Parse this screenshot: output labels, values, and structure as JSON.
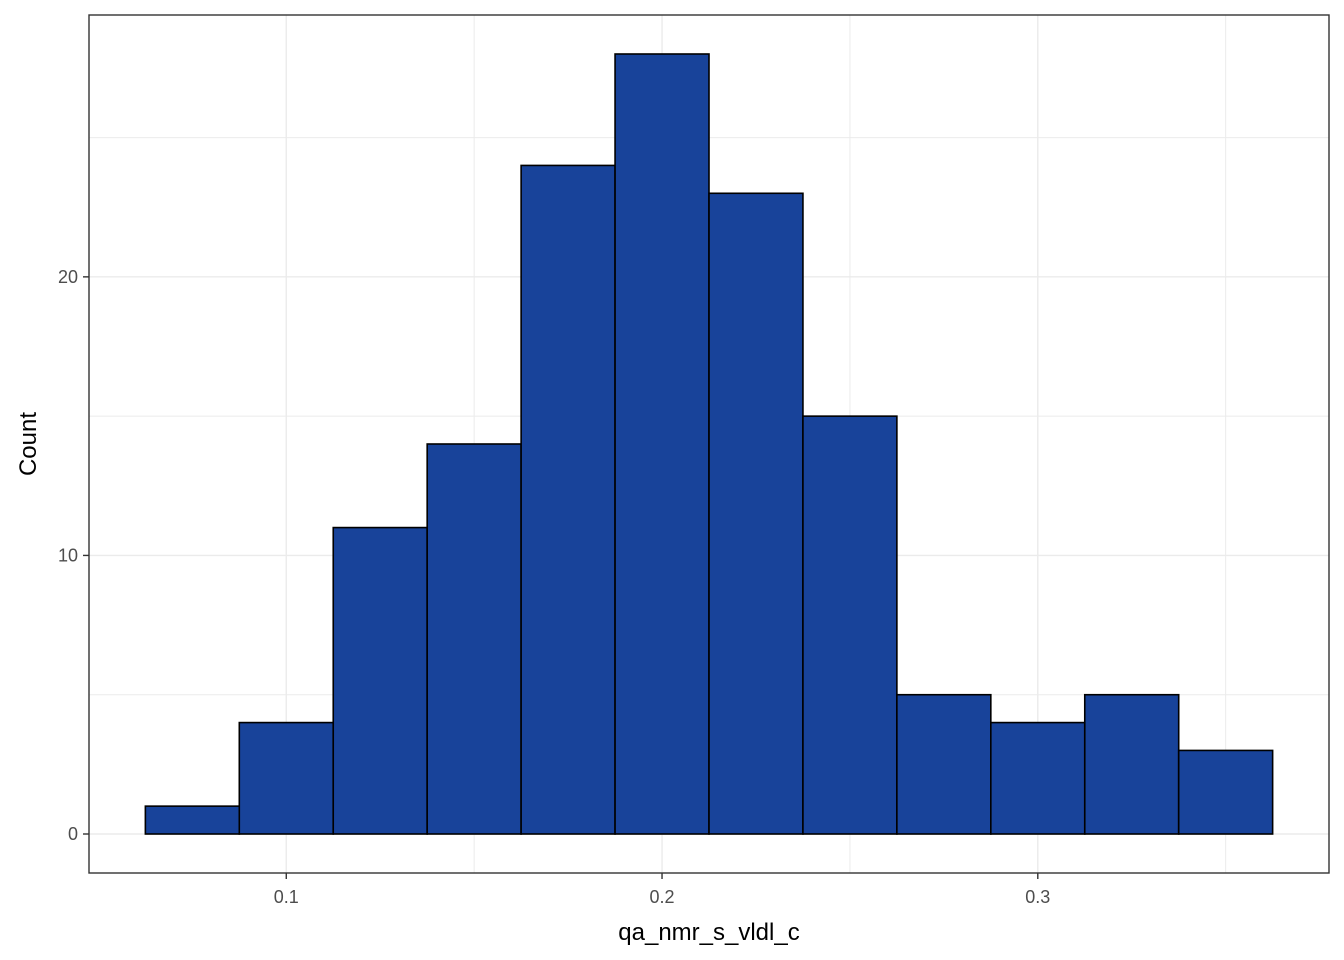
{
  "chart_data": {
    "type": "bar",
    "title": "",
    "xlabel": "qa_nmr_s_vldl_c",
    "ylabel": "Count",
    "bin_width": 0.025,
    "bins": [
      {
        "x0": 0.0625,
        "x1": 0.0875,
        "count": 1
      },
      {
        "x0": 0.0875,
        "x1": 0.1125,
        "count": 4
      },
      {
        "x0": 0.1125,
        "x1": 0.1375,
        "count": 11
      },
      {
        "x0": 0.1375,
        "x1": 0.1625,
        "count": 14
      },
      {
        "x0": 0.1625,
        "x1": 0.1875,
        "count": 24
      },
      {
        "x0": 0.1875,
        "x1": 0.2125,
        "count": 28
      },
      {
        "x0": 0.2125,
        "x1": 0.2375,
        "count": 23
      },
      {
        "x0": 0.2375,
        "x1": 0.2625,
        "count": 15
      },
      {
        "x0": 0.2625,
        "x1": 0.2875,
        "count": 5
      },
      {
        "x0": 0.2875,
        "x1": 0.3125,
        "count": 4
      },
      {
        "x0": 0.3125,
        "x1": 0.3375,
        "count": 5
      },
      {
        "x0": 0.3375,
        "x1": 0.3625,
        "count": 3
      }
    ],
    "xlim": [
      0.0475,
      0.3775
    ],
    "ylim": [
      -1.4,
      29.4
    ],
    "x_ticks": [
      {
        "value": 0.1,
        "label": "0.1"
      },
      {
        "value": 0.2,
        "label": "0.2"
      },
      {
        "value": 0.3,
        "label": "0.3"
      }
    ],
    "x_minor_ticks": [
      0.15,
      0.25,
      0.35
    ],
    "y_ticks": [
      {
        "value": 0,
        "label": "0"
      },
      {
        "value": 10,
        "label": "10"
      },
      {
        "value": 20,
        "label": "20"
      }
    ],
    "y_minor_ticks": [
      5,
      15,
      25
    ],
    "grid": true,
    "colors": {
      "bar_fill": "#18439a",
      "bar_stroke": "#000000",
      "grid": "#ebebeb",
      "panel_border": "#333333",
      "tick_label": "#4d4d4d",
      "axis_title": "#000000"
    }
  }
}
